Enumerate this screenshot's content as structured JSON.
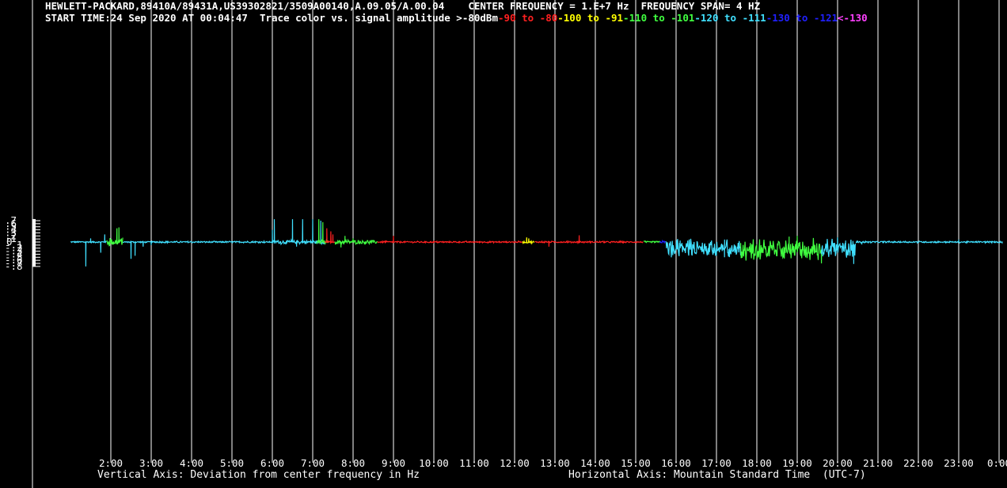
{
  "header": {
    "line1_left": "HEWLETT-PACKARD,89410A/89431A,US39302821/3509A00140,A.09.05/A.00.04",
    "center_frequency": "CENTER FREQUENCY = 1.E+7 Hz",
    "frequency_span": "FREQUENCY SPAN= 4 HZ",
    "start_time": "START TIME:24 Sep 2020 AT 00:04:47",
    "legend_intro": "Trace color vs. signal amplitude",
    "legend": [
      {
        "text": ">-80dBm",
        "color": "#ffffff"
      },
      {
        "text": "-90",
        "color": "#ff2020"
      },
      {
        "text": " to ",
        "color": "#ff2020"
      },
      {
        "text": "-80",
        "color": "#ff2020"
      },
      {
        "text": "-100",
        "color": "#ffff00"
      },
      {
        "text": " to ",
        "color": "#ffff00"
      },
      {
        "text": "-91",
        "color": "#ffff00"
      },
      {
        "text": "-110",
        "color": "#40ff40"
      },
      {
        "text": " to ",
        "color": "#40ff40"
      },
      {
        "text": "-101",
        "color": "#40ff40"
      },
      {
        "text": "-120",
        "color": "#40e0ff"
      },
      {
        "text": " to ",
        "color": "#40e0ff"
      },
      {
        "text": "-111",
        "color": "#40e0ff"
      },
      {
        "text": "-130",
        "color": "#2020ff"
      },
      {
        "text": " to ",
        "color": "#2020ff"
      },
      {
        "text": "-121",
        "color": "#2020ff"
      },
      {
        "text": "<-130",
        "color": "#ff40ff"
      }
    ]
  },
  "axis_text": {
    "vertical": "Vertical Axis: Deviation from center frequency in Hz",
    "horizontal": "Horizontal Axis: Mountain Standard Time  (UTC-7)"
  },
  "chart_data": {
    "type": "line",
    "ylim": [
      -0.8,
      0.75
    ],
    "xlim": [
      1.0,
      24.2
    ],
    "y_ticks": [
      ".7",
      ".6",
      ".5",
      ".4",
      ".3",
      ".2",
      ".1",
      "0",
      "-.1",
      "-.2",
      "-.3",
      "-.4",
      "-.5",
      "-.6",
      "-.7",
      "-.8"
    ],
    "y_tick_values": [
      0.7,
      0.6,
      0.5,
      0.4,
      0.3,
      0.2,
      0.1,
      0,
      -0.1,
      -0.2,
      -0.3,
      -0.4,
      -0.5,
      -0.6,
      -0.7,
      -0.8
    ],
    "x_ticks": [
      "2:00",
      "3:00",
      "4:00",
      "5:00",
      "6:00",
      "7:00",
      "8:00",
      "9:00",
      "10:00",
      "11:00",
      "12:00",
      "13:00",
      "14:00",
      "15:00",
      "16:00",
      "17:00",
      "18:00",
      "19:00",
      "20:00",
      "21:00",
      "22:00",
      "23:00",
      "0:00"
    ],
    "x_tick_values": [
      2,
      3,
      4,
      5,
      6,
      7,
      8,
      9,
      10,
      11,
      12,
      13,
      14,
      15,
      16,
      17,
      18,
      19,
      20,
      21,
      22,
      23,
      24
    ],
    "segments": [
      {
        "color": "#40e0ff",
        "x_start": 1.0,
        "x_end": 1.9,
        "base_amp": 0.02,
        "spikes": [
          [
            1.38,
            -0.8
          ],
          [
            1.5,
            0.12
          ],
          [
            1.75,
            -0.35
          ],
          [
            1.85,
            0.25
          ]
        ]
      },
      {
        "color": "#40ff40",
        "x_start": 1.9,
        "x_end": 2.3,
        "base_amp": 0.1,
        "spikes": [
          [
            2.15,
            0.45
          ],
          [
            2.2,
            0.48
          ],
          [
            1.98,
            0.13
          ]
        ]
      },
      {
        "color": "#40e0ff",
        "x_start": 2.3,
        "x_end": 6.0,
        "base_amp": 0.02,
        "spikes": [
          [
            2.5,
            -0.55
          ],
          [
            2.6,
            -0.45
          ],
          [
            2.8,
            -0.15
          ],
          [
            3.0,
            -0.1
          ]
        ]
      },
      {
        "color": "#40e0ff",
        "x_start": 6.0,
        "x_end": 7.3,
        "base_amp": 0.05,
        "spikes": [
          [
            6.0,
            0.4
          ],
          [
            6.05,
            0.75
          ],
          [
            6.5,
            0.75
          ],
          [
            6.6,
            -0.15
          ],
          [
            6.75,
            0.75
          ],
          [
            7.0,
            0.75
          ],
          [
            7.2,
            0.7
          ]
        ]
      },
      {
        "color": "#40ff40",
        "x_start": 7.1,
        "x_end": 7.4,
        "base_amp": 0.05,
        "spikes": [
          [
            7.15,
            0.75
          ],
          [
            7.25,
            0.65
          ]
        ]
      },
      {
        "color": "#ff2020",
        "x_start": 7.3,
        "x_end": 7.55,
        "base_amp": 0.0,
        "spikes": [
          [
            7.35,
            0.45
          ],
          [
            7.45,
            0.35
          ],
          [
            7.5,
            0.25
          ]
        ]
      },
      {
        "color": "#40ff40",
        "x_start": 7.55,
        "x_end": 8.6,
        "base_amp": 0.05,
        "spikes": [
          [
            7.7,
            -0.18
          ],
          [
            7.8,
            0.2
          ],
          [
            8.0,
            0.12
          ],
          [
            8.3,
            -0.08
          ]
        ]
      },
      {
        "color": "#ff2020",
        "x_start": 8.6,
        "x_end": 12.2,
        "base_amp": 0.02,
        "spikes": [
          [
            9.0,
            0.2
          ],
          [
            8.8,
            0.05
          ]
        ]
      },
      {
        "color": "#ffff00",
        "x_start": 12.2,
        "x_end": 12.5,
        "base_amp": 0.03,
        "spikes": [
          [
            12.3,
            0.15
          ],
          [
            12.35,
            0.12
          ]
        ]
      },
      {
        "color": "#ff2020",
        "x_start": 12.5,
        "x_end": 15.2,
        "base_amp": 0.02,
        "spikes": [
          [
            12.85,
            -0.15
          ],
          [
            13.6,
            0.22
          ],
          [
            13.3,
            0.05
          ]
        ]
      },
      {
        "color": "#40ff40",
        "x_start": 15.2,
        "x_end": 15.6,
        "base_amp": 0.02,
        "spikes": []
      },
      {
        "color": "#2020ff",
        "x_start": 15.6,
        "x_end": 15.75,
        "base_amp": 0.03,
        "spikes": []
      },
      {
        "color": "#40e0ff",
        "x_start": 15.75,
        "x_end": 17.6,
        "base_amp": 0.25,
        "center": -0.2,
        "spikes": [
          [
            16.1,
            0.05
          ],
          [
            17.0,
            -0.45
          ],
          [
            17.2,
            -0.5
          ]
        ]
      },
      {
        "color": "#40ff40",
        "x_start": 17.6,
        "x_end": 19.6,
        "base_amp": 0.3,
        "center": -0.25,
        "spikes": [
          [
            18.8,
            0.18
          ],
          [
            19.0,
            0.2
          ],
          [
            19.6,
            -0.7
          ]
        ]
      },
      {
        "color": "#40e0ff",
        "x_start": 19.6,
        "x_end": 20.45,
        "base_amp": 0.3,
        "center": -0.2,
        "spikes": [
          [
            20.0,
            0.15
          ],
          [
            20.4,
            -0.72
          ],
          [
            20.2,
            0.05
          ]
        ]
      },
      {
        "color": "#40e0ff",
        "x_start": 20.45,
        "x_end": 24.2,
        "base_amp": 0.02,
        "spikes": [
          [
            20.6,
            -0.08
          ],
          [
            23.0,
            0.08
          ]
        ]
      }
    ]
  }
}
